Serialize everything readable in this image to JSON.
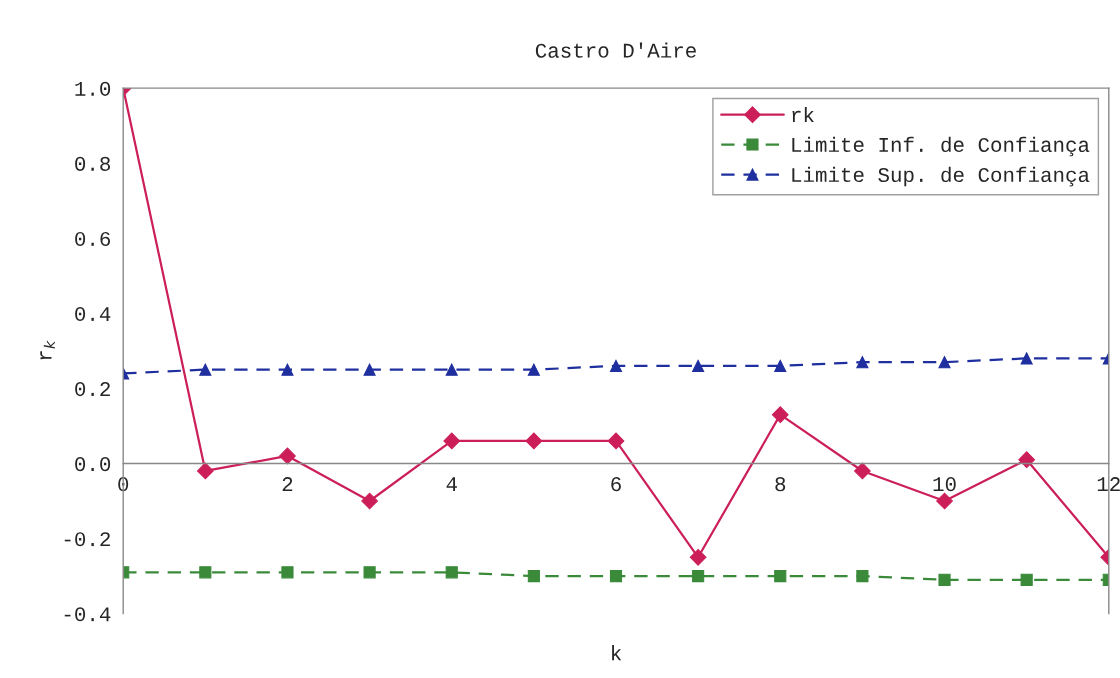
{
  "chart_data": {
    "type": "line",
    "title": "Castro D'Aire",
    "xlabel": "k",
    "ylabel": "r$_{k}$",
    "x": [
      0,
      1,
      2,
      3,
      4,
      5,
      6,
      7,
      8,
      9,
      10,
      11,
      12
    ],
    "series": [
      {
        "name": "rk",
        "color": "#cc1f5a",
        "marker": "diamond",
        "line_style": "solid",
        "values": [
          1.0,
          -0.02,
          0.02,
          -0.1,
          0.06,
          0.06,
          0.06,
          -0.25,
          0.13,
          -0.02,
          -0.1,
          0.01,
          -0.25
        ]
      },
      {
        "name": "Limite Inf. de Confiança",
        "color": "#3a8a3a",
        "marker": "square",
        "line_style": "dashed",
        "values": [
          -0.29,
          -0.29,
          -0.29,
          -0.29,
          -0.29,
          -0.3,
          -0.3,
          -0.3,
          -0.3,
          -0.3,
          -0.31,
          -0.31,
          -0.31
        ]
      },
      {
        "name": "Limite Sup. de Confiança",
        "color": "#1f2f9f",
        "marker": "triangle",
        "line_style": "dashed",
        "values": [
          0.24,
          0.25,
          0.25,
          0.25,
          0.25,
          0.25,
          0.26,
          0.26,
          0.26,
          0.27,
          0.27,
          0.28,
          0.28
        ]
      }
    ],
    "xlim": [
      0,
      12
    ],
    "xticks": [
      0,
      2,
      4,
      6,
      8,
      10,
      12
    ],
    "ylim": [
      -0.4,
      1.0
    ],
    "yticks": [
      {
        "value": -0.4,
        "label": "-0.4"
      },
      {
        "value": -0.2,
        "label": "-0.2"
      },
      {
        "value": 0,
        "label": "0.0"
      },
      {
        "value": 0.2,
        "label": "0.2"
      },
      {
        "value": 0.4,
        "label": "0.4"
      },
      {
        "value": 0.6,
        "label": "0.6"
      },
      {
        "value": 0.8,
        "label": "0.8"
      },
      {
        "value": 1.0,
        "label": "1.0"
      }
    ],
    "legend": "top right",
    "grid": false
  }
}
